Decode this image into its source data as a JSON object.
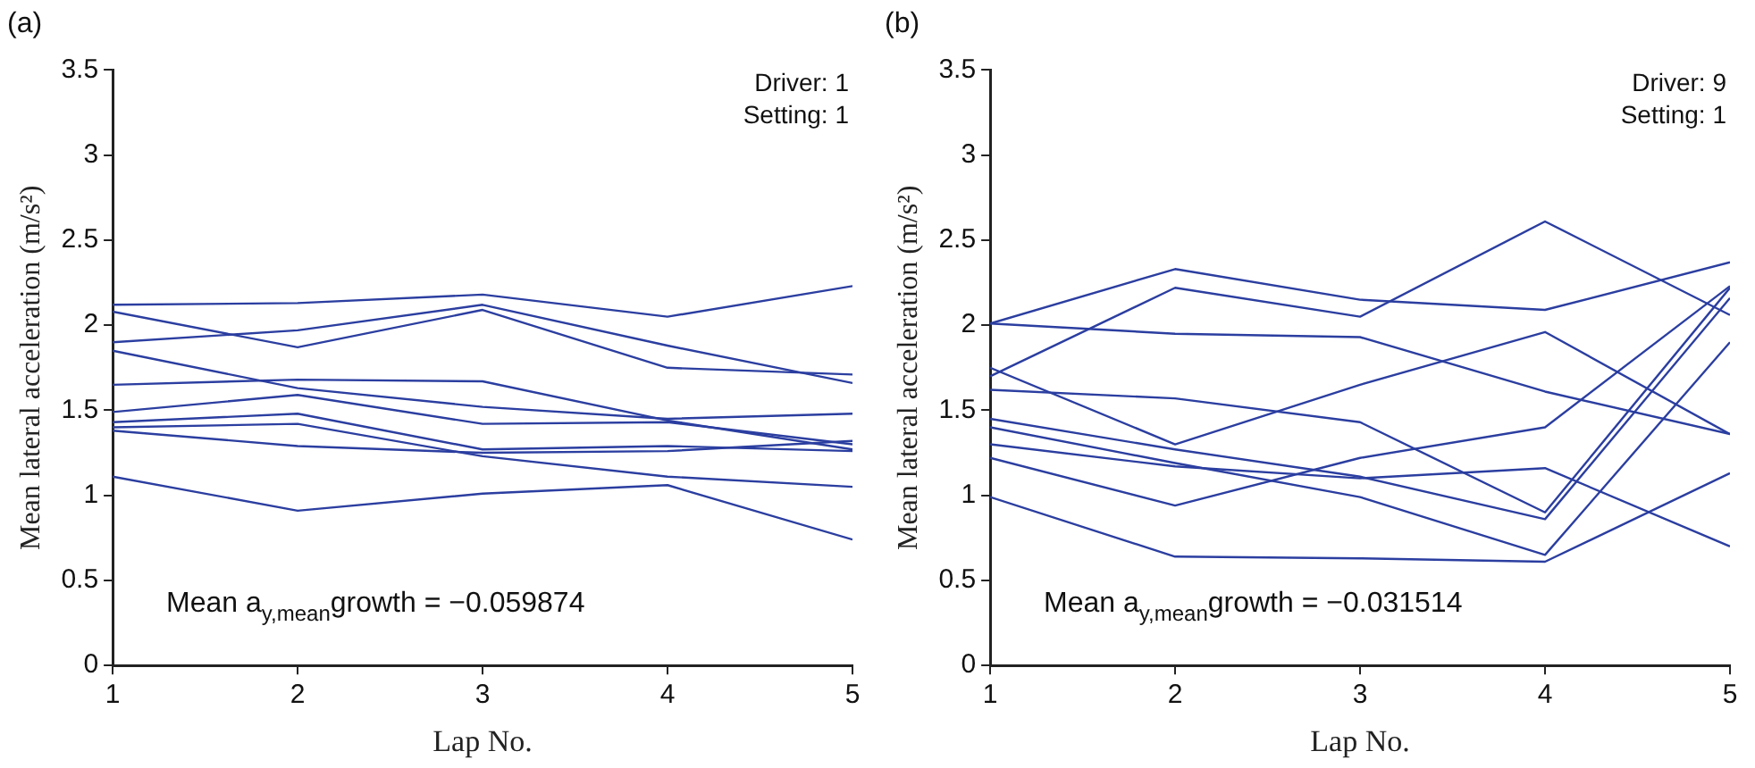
{
  "chart_data": [
    {
      "type": "line",
      "title": "(a)",
      "xlabel": "Lap No.",
      "ylabel": "Mean lateral acceleration (m/s²)",
      "x": [
        1,
        2,
        3,
        4,
        5
      ],
      "xlim": [
        1,
        5
      ],
      "xticks": [
        1,
        2,
        3,
        4,
        5
      ],
      "ylim": [
        0,
        3.5
      ],
      "yticks": [
        0,
        0.5,
        1,
        1.5,
        2,
        2.5,
        3,
        3.5
      ],
      "grid": false,
      "legend": false,
      "marker": "none",
      "line_style": "solid",
      "annotations": [
        "Driver: 1",
        "Setting: 1",
        "Mean a$_{y,mean}$growth = −0.059874"
      ],
      "series": [
        {
          "color": "#2b3ea0",
          "values": [
            2.12,
            2.13,
            2.18,
            2.05,
            2.23
          ]
        },
        {
          "color": "#2b3ea0",
          "values": [
            2.08,
            1.87,
            2.09,
            1.75,
            1.71
          ]
        },
        {
          "color": "#2b3ea0",
          "values": [
            1.9,
            1.97,
            2.12,
            1.88,
            1.66
          ]
        },
        {
          "color": "#2b3ea0",
          "values": [
            1.85,
            1.63,
            1.52,
            1.45,
            1.48
          ]
        },
        {
          "color": "#2b3ea0",
          "values": [
            1.65,
            1.68,
            1.67,
            1.44,
            1.27
          ]
        },
        {
          "color": "#2b3ea0",
          "values": [
            1.49,
            1.59,
            1.42,
            1.43,
            1.3
          ]
        },
        {
          "color": "#2b3ea0",
          "values": [
            1.43,
            1.48,
            1.27,
            1.29,
            1.26
          ]
        },
        {
          "color": "#2b3ea0",
          "values": [
            1.4,
            1.42,
            1.23,
            1.11,
            1.05
          ]
        },
        {
          "color": "#2b3ea0",
          "values": [
            1.38,
            1.29,
            1.25,
            1.26,
            1.32
          ]
        },
        {
          "color": "#2b3ea0",
          "values": [
            1.11,
            0.91,
            1.01,
            1.06,
            0.74
          ]
        }
      ]
    },
    {
      "type": "line",
      "title": "(b)",
      "xlabel": "Lap No.",
      "ylabel": "Mean lateral acceleration (m/s²)",
      "x": [
        1,
        2,
        3,
        4,
        5
      ],
      "xlim": [
        1,
        5
      ],
      "xticks": [
        1,
        2,
        3,
        4,
        5
      ],
      "ylim": [
        0,
        3.5
      ],
      "yticks": [
        0,
        0.5,
        1,
        1.5,
        2,
        2.5,
        3,
        3.5
      ],
      "grid": false,
      "legend": false,
      "marker": "none",
      "line_style": "solid",
      "annotations": [
        "Driver: 9",
        "Setting: 1",
        "Mean a$_{y,mean}$growth = −0.031514"
      ],
      "series": [
        {
          "color": "#2b3ea0",
          "values": [
            2.01,
            2.33,
            2.15,
            2.09,
            2.37
          ]
        },
        {
          "color": "#2b3ea0",
          "values": [
            1.7,
            2.22,
            2.05,
            2.61,
            2.06
          ]
        },
        {
          "color": "#2b3ea0",
          "values": [
            2.01,
            1.95,
            1.93,
            1.61,
            1.36
          ]
        },
        {
          "color": "#2b3ea0",
          "values": [
            1.75,
            1.3,
            1.65,
            1.96,
            1.36
          ]
        },
        {
          "color": "#2b3ea0",
          "values": [
            1.62,
            1.57,
            1.43,
            0.9,
            2.22
          ]
        },
        {
          "color": "#2b3ea0",
          "values": [
            1.45,
            1.27,
            1.11,
            0.86,
            2.16
          ]
        },
        {
          "color": "#2b3ea0",
          "values": [
            1.4,
            1.19,
            0.99,
            0.65,
            1.9
          ]
        },
        {
          "color": "#2b3ea0",
          "values": [
            1.3,
            1.17,
            1.1,
            1.16,
            0.7
          ]
        },
        {
          "color": "#2b3ea0",
          "values": [
            1.22,
            0.94,
            1.22,
            1.4,
            2.23
          ]
        },
        {
          "color": "#2b3ea0",
          "values": [
            0.99,
            0.64,
            0.63,
            0.61,
            1.13
          ]
        }
      ]
    }
  ]
}
